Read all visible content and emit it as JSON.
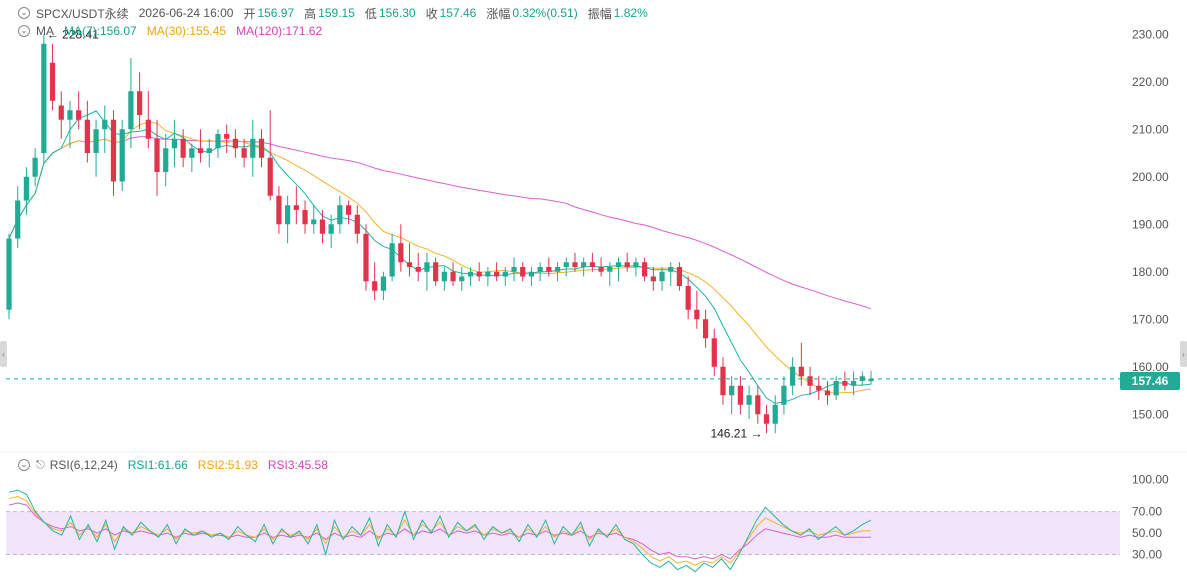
{
  "header": {
    "symbol": "SPCX/USDT永续",
    "datetime": "2026-06-24 16:00",
    "open_label": "开",
    "open": "156.97",
    "high_label": "高",
    "high": "159.15",
    "low_label": "低",
    "low": "156.30",
    "close_label": "收",
    "close": "157.46",
    "change_label": "涨幅",
    "change": "0.32%(0.51)",
    "amplitude_label": "振幅",
    "amplitude": "1.82%"
  },
  "ma_legend": {
    "label": "MA",
    "ma7": "MA(7):156.07",
    "ma30": "MA(30):155.45",
    "ma120": "MA(120):171.62"
  },
  "rsi_legend": {
    "label": "RSI(6,12,24)",
    "rsi1": "RSI1:61.66",
    "rsi2": "RSI2:51.93",
    "rsi3": "RSI3:45.58"
  },
  "colors": {
    "up": "#22ab94",
    "down": "#e0344b",
    "ma7": "#23b5a0",
    "ma30": "#f2b32d",
    "ma120": "#d95fd0",
    "rsi1": "#23b5a0",
    "rsi2": "#f2b32d",
    "rsi3": "#d95fd0",
    "rsi_band": "#f1e4fb",
    "grid": "#d9d9d9"
  },
  "chart_data": [
    {
      "type": "candlestick",
      "y_ticks": [
        "230.00",
        "220.00",
        "210.00",
        "200.00",
        "190.00",
        "180.00",
        "170.00",
        "160.00",
        "150.00"
      ],
      "ylim": [
        145,
        233
      ],
      "last_price": 157.46,
      "last_price_label": "157.46",
      "max_label": "228.41",
      "min_label": "146.21",
      "candles": [
        [
          172,
          188,
          170,
          187
        ],
        [
          187,
          198,
          185,
          195
        ],
        [
          195,
          202,
          192,
          200
        ],
        [
          200,
          206,
          198,
          204
        ],
        [
          205,
          230,
          203,
          228
        ],
        [
          224,
          228,
          214,
          216
        ],
        [
          215,
          218,
          208,
          212
        ],
        [
          212,
          216,
          206,
          214
        ],
        [
          214,
          218,
          210,
          212
        ],
        [
          212,
          216,
          203,
          205
        ],
        [
          205,
          212,
          200,
          210
        ],
        [
          210,
          215,
          205,
          212
        ],
        [
          212,
          214,
          196,
          199
        ],
        [
          199,
          212,
          197,
          210
        ],
        [
          210,
          225,
          206,
          218
        ],
        [
          218,
          222,
          210,
          213
        ],
        [
          212,
          218,
          206,
          208
        ],
        [
          208,
          212,
          196,
          201
        ],
        [
          201,
          209,
          198,
          206
        ],
        [
          206,
          212,
          202,
          208
        ],
        [
          208,
          210,
          202,
          204
        ],
        [
          204,
          207,
          201,
          206
        ],
        [
          206,
          210,
          203,
          205
        ],
        [
          205,
          208,
          202,
          206
        ],
        [
          206,
          210,
          204,
          209
        ],
        [
          209,
          211,
          205,
          208
        ],
        [
          208,
          210,
          204,
          206
        ],
        [
          206,
          208,
          202,
          204
        ],
        [
          204,
          212,
          200,
          208
        ],
        [
          208,
          210,
          202,
          204
        ],
        [
          204,
          214,
          195,
          196
        ],
        [
          196,
          198,
          188,
          190
        ],
        [
          190,
          196,
          186,
          194
        ],
        [
          194,
          198,
          190,
          193
        ],
        [
          193,
          195,
          188,
          190
        ],
        [
          190,
          194,
          188,
          191
        ],
        [
          191,
          193,
          186,
          188
        ],
        [
          188,
          192,
          185,
          190
        ],
        [
          190,
          196,
          188,
          194
        ],
        [
          194,
          195,
          190,
          192
        ],
        [
          192,
          194,
          186,
          188
        ],
        [
          188,
          190,
          176,
          178
        ],
        [
          178,
          182,
          174,
          176
        ],
        [
          176,
          180,
          174,
          179
        ],
        [
          179,
          188,
          178,
          186
        ],
        [
          186,
          190,
          180,
          182
        ],
        [
          182,
          186,
          179,
          181
        ],
        [
          181,
          184,
          178,
          180
        ],
        [
          180,
          184,
          176,
          182
        ],
        [
          182,
          183,
          177,
          178
        ],
        [
          178,
          181,
          176,
          180
        ],
        [
          180,
          182,
          177,
          178
        ],
        [
          178,
          181,
          176,
          179
        ],
        [
          179,
          181,
          177,
          180
        ],
        [
          180,
          182,
          178,
          179
        ],
        [
          179,
          181,
          177,
          180
        ],
        [
          180,
          182,
          178,
          179
        ],
        [
          179,
          181,
          177,
          180
        ],
        [
          180,
          183,
          178,
          181
        ],
        [
          181,
          182,
          178,
          179
        ],
        [
          179,
          181,
          177,
          180
        ],
        [
          180,
          182,
          178,
          181
        ],
        [
          181,
          183,
          179,
          180
        ],
        [
          180,
          182,
          178,
          181
        ],
        [
          181,
          183,
          179,
          182
        ],
        [
          182,
          184,
          180,
          181
        ],
        [
          181,
          183,
          179,
          182
        ],
        [
          182,
          184,
          180,
          181
        ],
        [
          181,
          183,
          179,
          180
        ],
        [
          180,
          182,
          177,
          181
        ],
        [
          181,
          183,
          178,
          182
        ],
        [
          182,
          184,
          180,
          181
        ],
        [
          181,
          183,
          179,
          182
        ],
        [
          182,
          183,
          178,
          179
        ],
        [
          179,
          181,
          176,
          178
        ],
        [
          178,
          181,
          176,
          180
        ],
        [
          180,
          182,
          177,
          181
        ],
        [
          181,
          182,
          176,
          177
        ],
        [
          177,
          179,
          170,
          172
        ],
        [
          172,
          176,
          168,
          170
        ],
        [
          170,
          172,
          164,
          166
        ],
        [
          166,
          168,
          158,
          160
        ],
        [
          160,
          162,
          152,
          154
        ],
        [
          154,
          158,
          150,
          156
        ],
        [
          156,
          158,
          150,
          152
        ],
        [
          152,
          156,
          149,
          154
        ],
        [
          154,
          156,
          148,
          150
        ],
        [
          150,
          152,
          146,
          148
        ],
        [
          148,
          154,
          146,
          152
        ],
        [
          152,
          158,
          150,
          156
        ],
        [
          156,
          162,
          154,
          160
        ],
        [
          160,
          165,
          156,
          158
        ],
        [
          158,
          160,
          154,
          156
        ],
        [
          156,
          158,
          153,
          155
        ],
        [
          155,
          157,
          152,
          154
        ],
        [
          154,
          158,
          153,
          157
        ],
        [
          157,
          159,
          155,
          156
        ],
        [
          156,
          159,
          154,
          157
        ],
        [
          157,
          159,
          156,
          158
        ],
        [
          156.97,
          159.15,
          156.3,
          157.46
        ]
      ]
    },
    {
      "type": "line",
      "y_ticks": [
        "100.00",
        "70.00",
        "50.00",
        "30.00"
      ],
      "ylim": [
        10,
        105
      ],
      "band": [
        30,
        70
      ],
      "series": [
        {
          "name": "RSI1",
          "values": [
            88,
            90,
            86,
            70,
            60,
            52,
            48,
            66,
            44,
            58,
            42,
            62,
            35,
            56,
            48,
            60,
            52,
            46,
            58,
            40,
            54,
            48,
            52,
            46,
            50,
            44,
            56,
            48,
            42,
            58,
            40,
            54,
            46,
            52,
            40,
            58,
            30,
            62,
            44,
            56,
            48,
            64,
            38,
            58,
            46,
            70,
            44,
            62,
            50,
            66,
            46,
            60,
            52,
            58,
            44,
            56,
            50,
            54,
            42,
            58,
            46,
            62,
            40,
            56,
            48,
            60,
            38,
            54,
            46,
            58,
            44,
            40,
            30,
            22,
            18,
            24,
            16,
            20,
            14,
            22,
            18,
            26,
            16,
            30,
            46,
            62,
            74,
            66,
            58,
            52,
            48,
            54,
            44,
            50,
            56,
            48,
            52,
            58,
            62
          ]
        },
        {
          "name": "RSI2",
          "values": [
            82,
            84,
            80,
            68,
            60,
            54,
            52,
            60,
            48,
            56,
            46,
            58,
            42,
            54,
            50,
            56,
            52,
            48,
            54,
            44,
            52,
            50,
            52,
            48,
            50,
            46,
            52,
            48,
            46,
            54,
            44,
            52,
            48,
            50,
            44,
            54,
            40,
            56,
            46,
            52,
            48,
            58,
            44,
            54,
            48,
            62,
            48,
            58,
            52,
            60,
            48,
            56,
            52,
            56,
            48,
            54,
            50,
            52,
            46,
            54,
            48,
            56,
            46,
            52,
            48,
            56,
            44,
            52,
            48,
            54,
            46,
            42,
            36,
            28,
            24,
            28,
            22,
            24,
            20,
            24,
            22,
            28,
            22,
            32,
            44,
            56,
            64,
            60,
            56,
            52,
            50,
            52,
            48,
            50,
            52,
            48,
            50,
            52,
            52
          ]
        },
        {
          "name": "RSI3",
          "values": [
            76,
            78,
            76,
            66,
            60,
            56,
            54,
            56,
            52,
            54,
            50,
            54,
            48,
            52,
            50,
            52,
            50,
            48,
            50,
            46,
            50,
            48,
            50,
            48,
            48,
            46,
            48,
            46,
            46,
            50,
            46,
            48,
            46,
            48,
            46,
            50,
            44,
            50,
            46,
            48,
            46,
            52,
            46,
            50,
            48,
            54,
            48,
            52,
            50,
            54,
            48,
            52,
            50,
            52,
            48,
            50,
            48,
            50,
            46,
            50,
            48,
            52,
            48,
            50,
            48,
            52,
            46,
            50,
            48,
            50,
            46,
            44,
            40,
            34,
            30,
            32,
            28,
            28,
            26,
            28,
            26,
            30,
            26,
            34,
            40,
            48,
            54,
            52,
            50,
            48,
            46,
            48,
            46,
            46,
            48,
            46,
            46,
            46,
            46
          ]
        }
      ]
    }
  ]
}
